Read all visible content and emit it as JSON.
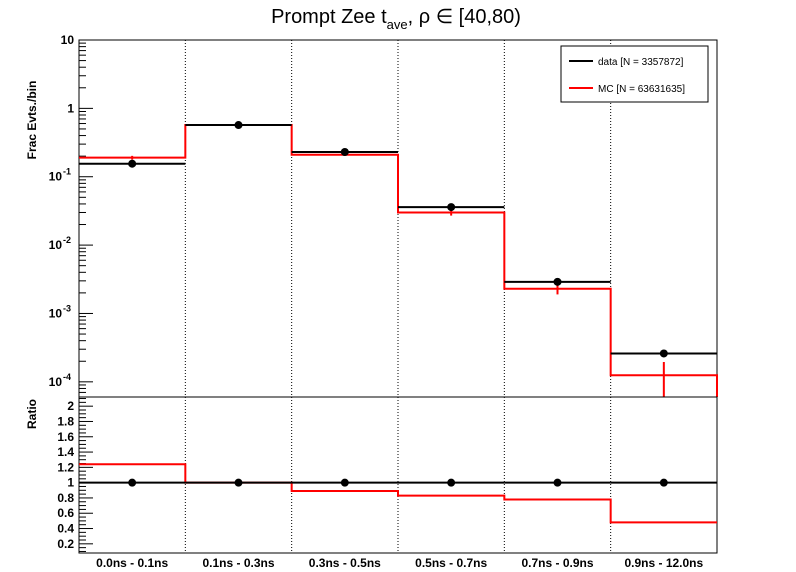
{
  "chart_data": {
    "type": "step-histogram-with-ratio",
    "title": {
      "prefix": "Prompt Zee t",
      "subscript": "ave",
      "suffix": ",  ρ ∈ [40,80)"
    },
    "categories": [
      "0.0ns - 0.1ns",
      "0.1ns - 0.3ns",
      "0.3ns - 0.5ns",
      "0.5ns - 0.7ns",
      "0.7ns - 0.9ns",
      "0.9ns - 12.0ns"
    ],
    "top_panel": {
      "ylabel": "Frac Evts./bin",
      "yscale": "log",
      "ylim": [
        6e-05,
        10
      ],
      "ticks": [
        {
          "value": 10,
          "label": "10",
          "exp": ""
        },
        {
          "value": 1,
          "label": "1",
          "exp": ""
        },
        {
          "value": 0.1,
          "label": "10",
          "exp": "-1"
        },
        {
          "value": 0.01,
          "label": "10",
          "exp": "-2"
        },
        {
          "value": 0.001,
          "label": "10",
          "exp": "-3"
        },
        {
          "value": 0.0001,
          "label": "10",
          "exp": "-4"
        }
      ],
      "series": [
        {
          "name": "data [N = 3357872]",
          "color": "#000000",
          "values": [
            0.155,
            0.57,
            0.23,
            0.036,
            0.0029,
            0.00026
          ],
          "markers": true
        },
        {
          "name": "MC [N = 63631635]",
          "color": "#ff0000",
          "values": [
            0.19,
            0.57,
            0.21,
            0.03,
            0.0023,
            0.000125
          ],
          "errors": [
            0.012,
            0.02,
            0.008,
            0.003,
            0.0004,
            7e-05
          ]
        }
      ],
      "legend_position": "top-right"
    },
    "ratio_panel": {
      "ylabel": "Ratio",
      "ylim": [
        0.08,
        2.12
      ],
      "ticks": [
        "0.2",
        "0.4",
        "0.6",
        "0.8",
        "1",
        "1.2",
        "1.4",
        "1.6",
        "1.8",
        "2"
      ],
      "series": [
        {
          "name": "data",
          "color": "#000000",
          "values": [
            1,
            1,
            1,
            1,
            1,
            1
          ],
          "markers": true
        },
        {
          "name": "MC",
          "color": "#ff0000",
          "values": [
            1.24,
            1.0,
            0.89,
            0.83,
            0.78,
            0.48
          ]
        }
      ]
    },
    "grid": "vertical-dotted"
  }
}
